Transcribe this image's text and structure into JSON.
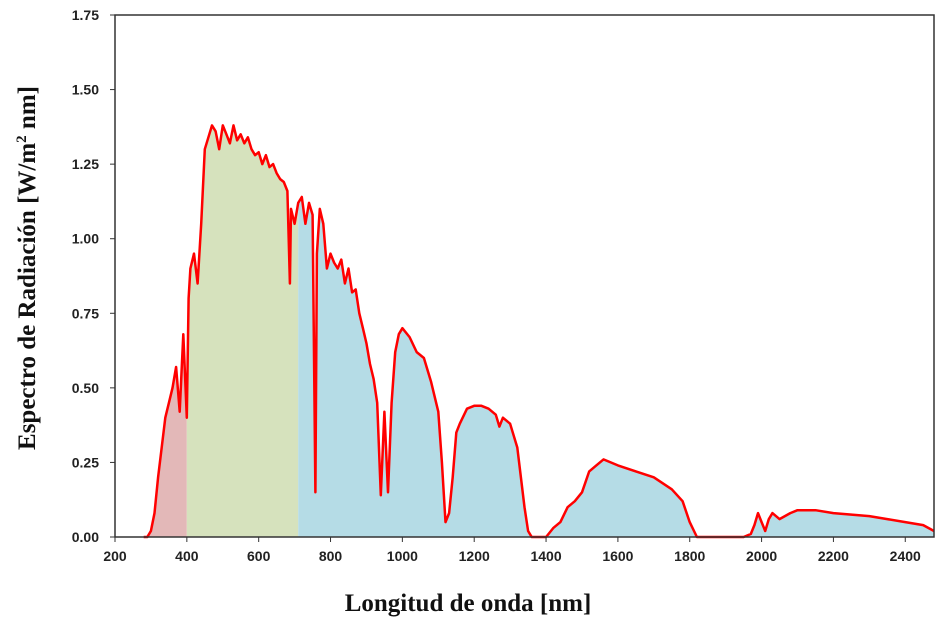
{
  "chart_data": {
    "type": "area",
    "title": "",
    "xlabel": "Longitud de onda [nm]",
    "ylabel_main": "Espectro de Radiación [W/m",
    "ylabel_sup": "2",
    "ylabel_end": " nm]",
    "xlim": [
      200,
      2480
    ],
    "ylim": [
      0,
      1.75
    ],
    "x_ticks": [
      "200",
      "400",
      "600",
      "800",
      "1000",
      "1200",
      "1400",
      "1600",
      "1800",
      "2000",
      "2200",
      "2400"
    ],
    "y_ticks": [
      "0.00",
      "0.25",
      "0.50",
      "0.75",
      "1.00",
      "1.25",
      "1.50",
      "1.75"
    ],
    "grid": false,
    "colors": {
      "spectrum_line": "#ff0000",
      "uv_fill": "#e3b8b8",
      "visible_fill": "#d6e2bd",
      "infrared_fill": "#b5dce6"
    },
    "bands": [
      {
        "band": "ultravioleta",
        "x_start": 280,
        "x_end": 400
      },
      {
        "band": "visible",
        "x_start": 400,
        "x_end": 710
      },
      {
        "band": "infrarrojo",
        "x_start": 710,
        "x_end": 2480
      }
    ],
    "spectrum": {
      "x": [
        280,
        290,
        300,
        310,
        320,
        330,
        340,
        350,
        360,
        370,
        380,
        390,
        400,
        405,
        410,
        420,
        430,
        440,
        450,
        460,
        470,
        480,
        490,
        500,
        510,
        520,
        530,
        540,
        550,
        560,
        570,
        580,
        590,
        600,
        610,
        620,
        630,
        640,
        650,
        660,
        670,
        680,
        687,
        690,
        700,
        710,
        720,
        730,
        740,
        750,
        758,
        762,
        770,
        780,
        790,
        800,
        810,
        820,
        830,
        840,
        850,
        860,
        870,
        880,
        890,
        900,
        910,
        920,
        930,
        940,
        950,
        960,
        970,
        980,
        990,
        1000,
        1020,
        1040,
        1060,
        1080,
        1100,
        1110,
        1120,
        1130,
        1140,
        1150,
        1160,
        1180,
        1200,
        1220,
        1240,
        1260,
        1270,
        1280,
        1300,
        1320,
        1340,
        1350,
        1360,
        1380,
        1400,
        1420,
        1440,
        1460,
        1480,
        1500,
        1520,
        1540,
        1560,
        1580,
        1600,
        1650,
        1700,
        1750,
        1780,
        1800,
        1820,
        1850,
        1900,
        1950,
        1970,
        1980,
        1990,
        2000,
        2010,
        2020,
        2030,
        2050,
        2080,
        2100,
        2150,
        2200,
        2250,
        2300,
        2350,
        2400,
        2450,
        2480
      ],
      "y": [
        0.0,
        0.0,
        0.02,
        0.08,
        0.2,
        0.3,
        0.4,
        0.45,
        0.5,
        0.57,
        0.42,
        0.68,
        0.4,
        0.8,
        0.9,
        0.95,
        0.85,
        1.05,
        1.3,
        1.34,
        1.38,
        1.36,
        1.3,
        1.38,
        1.35,
        1.32,
        1.38,
        1.33,
        1.35,
        1.32,
        1.34,
        1.3,
        1.28,
        1.29,
        1.25,
        1.28,
        1.24,
        1.25,
        1.22,
        1.2,
        1.19,
        1.16,
        0.85,
        1.1,
        1.05,
        1.12,
        1.14,
        1.05,
        1.12,
        1.08,
        0.15,
        0.95,
        1.1,
        1.05,
        0.9,
        0.95,
        0.92,
        0.9,
        0.93,
        0.85,
        0.9,
        0.82,
        0.83,
        0.75,
        0.7,
        0.65,
        0.58,
        0.53,
        0.45,
        0.14,
        0.42,
        0.15,
        0.45,
        0.62,
        0.68,
        0.7,
        0.67,
        0.62,
        0.6,
        0.52,
        0.42,
        0.25,
        0.05,
        0.08,
        0.2,
        0.35,
        0.38,
        0.43,
        0.44,
        0.44,
        0.43,
        0.41,
        0.37,
        0.4,
        0.38,
        0.3,
        0.1,
        0.02,
        0.0,
        0.0,
        0.0,
        0.03,
        0.05,
        0.1,
        0.12,
        0.15,
        0.22,
        0.24,
        0.26,
        0.25,
        0.24,
        0.22,
        0.2,
        0.16,
        0.12,
        0.05,
        0.0,
        0.0,
        0.0,
        0.0,
        0.01,
        0.04,
        0.08,
        0.05,
        0.02,
        0.06,
        0.08,
        0.06,
        0.08,
        0.09,
        0.09,
        0.08,
        0.075,
        0.07,
        0.06,
        0.05,
        0.04,
        0.02
      ]
    }
  }
}
